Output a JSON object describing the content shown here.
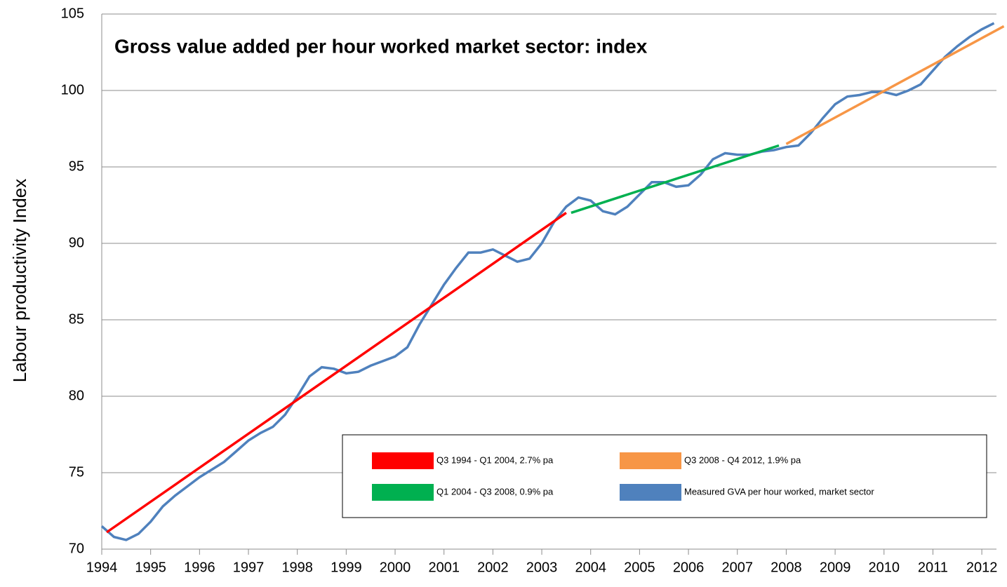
{
  "chart_data": {
    "type": "line",
    "title": "Gross value added per hour worked market sector: index",
    "y_label": "Labour productivity Index",
    "xlim": [
      1994,
      2012.3
    ],
    "xticks": [
      1994,
      1995,
      1996,
      1997,
      1998,
      1999,
      2000,
      2001,
      2002,
      2003,
      2004,
      2005,
      2006,
      2007,
      2008,
      2009,
      2010,
      2011,
      2012
    ],
    "ylim": [
      70,
      105
    ],
    "yticks": [
      70,
      75,
      80,
      85,
      90,
      95,
      100,
      105
    ],
    "grid": true,
    "legend": "bottom-right",
    "series": [
      {
        "name": "Q3 1994 - Q1 2004, 2.7% pa",
        "color": "#ff0000",
        "x": [
          1994.1,
          2003.5
        ],
        "values": [
          71.1,
          92.0
        ]
      },
      {
        "name": "Q1 2004 - Q3 2008, 0.9% pa",
        "color": "#00b050",
        "x": [
          2003.6,
          2007.85
        ],
        "values": [
          92.0,
          96.4
        ]
      },
      {
        "name": "Q3 2008 - Q4 2012, 1.9% pa",
        "color": "#f79646",
        "x": [
          2008.0,
          2012.45
        ],
        "values": [
          96.5,
          104.2
        ]
      },
      {
        "name": "Measured GVA per hour worked, market sector",
        "color": "#4f81bd",
        "x": [
          1994.0,
          1994.25,
          1994.5,
          1994.75,
          1995.0,
          1995.25,
          1995.5,
          1995.75,
          1996.0,
          1996.25,
          1996.5,
          1996.75,
          1997.0,
          1997.25,
          1997.5,
          1997.75,
          1998.0,
          1998.25,
          1998.5,
          1998.75,
          1999.0,
          1999.25,
          1999.5,
          1999.75,
          2000.0,
          2000.25,
          2000.5,
          2000.75,
          2001.0,
          2001.25,
          2001.5,
          2001.75,
          2002.0,
          2002.25,
          2002.5,
          2002.75,
          2003.0,
          2003.25,
          2003.5,
          2003.75,
          2004.0,
          2004.25,
          2004.5,
          2004.75,
          2005.0,
          2005.25,
          2005.5,
          2005.75,
          2006.0,
          2006.25,
          2006.5,
          2006.75,
          2007.0,
          2007.25,
          2007.5,
          2007.75,
          2008.0,
          2008.25,
          2008.5,
          2008.75,
          2009.0,
          2009.25,
          2009.5,
          2009.75,
          2010.0,
          2010.25,
          2010.5,
          2010.75,
          2011.0,
          2011.25,
          2011.5,
          2011.75,
          2012.0,
          2012.25
        ],
        "values": [
          71.5,
          70.8,
          70.6,
          71.0,
          71.8,
          72.8,
          73.5,
          74.1,
          74.7,
          75.2,
          75.7,
          76.4,
          77.1,
          77.6,
          78.0,
          78.8,
          80.0,
          81.3,
          81.9,
          81.8,
          81.5,
          81.6,
          82.0,
          82.3,
          82.6,
          83.2,
          84.7,
          86.0,
          87.3,
          88.4,
          89.4,
          89.4,
          89.6,
          89.2,
          88.8,
          89.0,
          90.0,
          91.4,
          92.4,
          93.0,
          92.8,
          92.1,
          91.9,
          92.4,
          93.2,
          94.0,
          94.0,
          93.7,
          93.8,
          94.5,
          95.5,
          95.9,
          95.8,
          95.8,
          96.0,
          96.1,
          96.3,
          96.4,
          97.2,
          98.2,
          99.1,
          99.6,
          99.7,
          99.9,
          99.9,
          99.7,
          100.0,
          100.4,
          101.3,
          102.2,
          102.9,
          103.5,
          104.0,
          104.4
        ]
      }
    ]
  }
}
